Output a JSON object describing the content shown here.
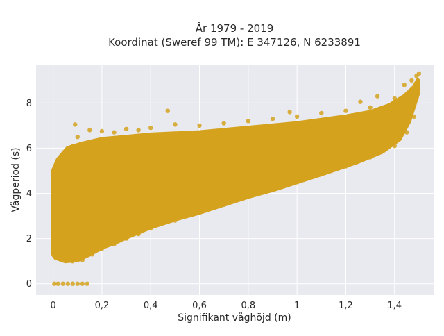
{
  "chart_data": {
    "type": "scatter",
    "title": "År 1979 - 2019",
    "subtitle": "Koordinat (Sweref 99 TM): E 347126, N 6233891",
    "xlabel": "Signifikant våghöjd (m)",
    "ylabel": "Vågperiod (s)",
    "xlim": [
      -0.07,
      1.56
    ],
    "ylim": [
      -0.5,
      9.7
    ],
    "x_ticks": [
      0,
      0.2,
      0.4,
      0.6,
      0.8,
      1,
      1.2,
      1.4
    ],
    "x_tick_labels": [
      "0",
      "0,2",
      "0,4",
      "0,6",
      "0,8",
      "1",
      "1,2",
      "1,4"
    ],
    "y_ticks": [
      0,
      2,
      4,
      6,
      8
    ],
    "y_tick_labels": [
      "0",
      "2",
      "4",
      "6",
      "8"
    ],
    "grid": true,
    "legend": "none",
    "marker_color": "#D4A21D",
    "plot_background": "#E9E9F0",
    "grid_color": "#FFFFFF",
    "series": [
      {
        "points": [
          [
            0.005,
            0.0
          ],
          [
            0.02,
            0.0
          ],
          [
            0.04,
            0.0
          ],
          [
            0.06,
            0.0
          ],
          [
            0.08,
            0.0
          ],
          [
            0.1,
            0.0
          ],
          [
            0.12,
            0.0
          ],
          [
            0.14,
            0.0
          ],
          [
            0.0,
            1.3
          ],
          [
            0.01,
            1.5
          ],
          [
            0.02,
            2.0
          ],
          [
            0.03,
            2.6
          ],
          [
            0.04,
            3.2
          ],
          [
            0.05,
            4.0
          ],
          [
            0.06,
            5.0
          ],
          [
            0.07,
            5.6
          ],
          [
            0.08,
            6.1
          ],
          [
            0.1,
            6.1
          ],
          [
            0.09,
            7.05
          ],
          [
            0.05,
            5.4
          ],
          [
            0.0,
            3.3
          ],
          [
            0.0,
            4.1
          ],
          [
            0.01,
            5.1
          ],
          [
            0.08,
            1.0
          ],
          [
            0.12,
            1.05
          ],
          [
            0.16,
            1.3
          ],
          [
            0.2,
            1.55
          ],
          [
            0.25,
            1.75
          ],
          [
            0.3,
            2.0
          ],
          [
            0.35,
            2.2
          ],
          [
            0.4,
            2.45
          ],
          [
            0.5,
            2.8
          ],
          [
            0.6,
            3.15
          ],
          [
            0.7,
            3.5
          ],
          [
            0.8,
            3.85
          ],
          [
            0.9,
            4.15
          ],
          [
            1.0,
            4.5
          ],
          [
            1.1,
            4.85
          ],
          [
            1.2,
            5.2
          ],
          [
            1.3,
            5.6
          ],
          [
            1.4,
            6.1
          ],
          [
            1.45,
            6.7
          ],
          [
            1.48,
            7.4
          ],
          [
            1.49,
            8.2
          ],
          [
            0.1,
            6.5
          ],
          [
            0.15,
            6.8
          ],
          [
            0.2,
            6.75
          ],
          [
            0.25,
            6.7
          ],
          [
            0.3,
            6.85
          ],
          [
            0.35,
            6.8
          ],
          [
            0.4,
            6.9
          ],
          [
            0.47,
            7.65
          ],
          [
            0.5,
            7.05
          ],
          [
            0.6,
            7.0
          ],
          [
            0.7,
            7.1
          ],
          [
            0.8,
            7.2
          ],
          [
            0.9,
            7.3
          ],
          [
            0.97,
            7.6
          ],
          [
            1.0,
            7.4
          ],
          [
            1.1,
            7.55
          ],
          [
            1.2,
            7.65
          ],
          [
            1.26,
            8.05
          ],
          [
            1.3,
            7.8
          ],
          [
            1.33,
            8.3
          ],
          [
            1.4,
            8.2
          ],
          [
            1.44,
            8.8
          ],
          [
            1.47,
            9.0
          ],
          [
            1.49,
            9.2
          ],
          [
            1.5,
            9.3
          ],
          [
            0.2,
            4.5
          ],
          [
            0.3,
            4.2
          ],
          [
            0.4,
            4.6
          ],
          [
            0.5,
            4.7
          ],
          [
            0.6,
            4.9
          ],
          [
            0.7,
            5.2
          ],
          [
            0.8,
            5.4
          ],
          [
            0.9,
            5.6
          ],
          [
            1.0,
            5.9
          ],
          [
            1.1,
            6.1
          ],
          [
            1.2,
            6.3
          ],
          [
            1.3,
            6.5
          ],
          [
            1.4,
            7.0
          ],
          [
            0.05,
            2.5
          ],
          [
            0.1,
            3.0
          ],
          [
            0.15,
            3.5
          ],
          [
            0.25,
            3.0
          ],
          [
            0.35,
            3.4
          ],
          [
            0.45,
            3.6
          ]
        ]
      }
    ]
  }
}
